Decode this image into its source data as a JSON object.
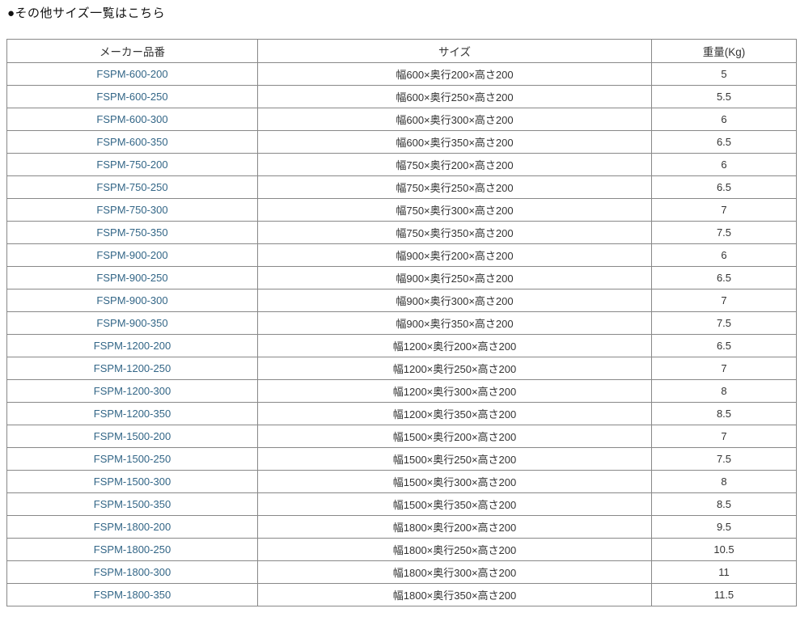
{
  "page": {
    "title": "●その他サイズ一覧はこちら"
  },
  "table": {
    "headers": {
      "part_number": "メーカー品番",
      "size": "サイズ",
      "weight": "重量(Kg)"
    },
    "rows": [
      {
        "part_number": "FSPM-600-200",
        "size": "幅600×奥行200×高さ200",
        "weight": "5"
      },
      {
        "part_number": "FSPM-600-250",
        "size": "幅600×奥行250×高さ200",
        "weight": "5.5"
      },
      {
        "part_number": "FSPM-600-300",
        "size": "幅600×奥行300×高さ200",
        "weight": "6"
      },
      {
        "part_number": "FSPM-600-350",
        "size": "幅600×奥行350×高さ200",
        "weight": "6.5"
      },
      {
        "part_number": "FSPM-750-200",
        "size": "幅750×奥行200×高さ200",
        "weight": "6"
      },
      {
        "part_number": "FSPM-750-250",
        "size": "幅750×奥行250×高さ200",
        "weight": "6.5"
      },
      {
        "part_number": "FSPM-750-300",
        "size": "幅750×奥行300×高さ200",
        "weight": "7"
      },
      {
        "part_number": "FSPM-750-350",
        "size": "幅750×奥行350×高さ200",
        "weight": "7.5"
      },
      {
        "part_number": "FSPM-900-200",
        "size": "幅900×奥行200×高さ200",
        "weight": "6"
      },
      {
        "part_number": "FSPM-900-250",
        "size": "幅900×奥行250×高さ200",
        "weight": "6.5"
      },
      {
        "part_number": "FSPM-900-300",
        "size": "幅900×奥行300×高さ200",
        "weight": "7"
      },
      {
        "part_number": "FSPM-900-350",
        "size": "幅900×奥行350×高さ200",
        "weight": "7.5"
      },
      {
        "part_number": "FSPM-1200-200",
        "size": "幅1200×奥行200×高さ200",
        "weight": "6.5"
      },
      {
        "part_number": "FSPM-1200-250",
        "size": "幅1200×奥行250×高さ200",
        "weight": "7"
      },
      {
        "part_number": "FSPM-1200-300",
        "size": "幅1200×奥行300×高さ200",
        "weight": "8"
      },
      {
        "part_number": "FSPM-1200-350",
        "size": "幅1200×奥行350×高さ200",
        "weight": "8.5"
      },
      {
        "part_number": "FSPM-1500-200",
        "size": "幅1500×奥行200×高さ200",
        "weight": "7"
      },
      {
        "part_number": "FSPM-1500-250",
        "size": "幅1500×奥行250×高さ200",
        "weight": "7.5"
      },
      {
        "part_number": "FSPM-1500-300",
        "size": "幅1500×奥行300×高さ200",
        "weight": "8"
      },
      {
        "part_number": "FSPM-1500-350",
        "size": "幅1500×奥行350×高さ200",
        "weight": "8.5"
      },
      {
        "part_number": "FSPM-1800-200",
        "size": "幅1800×奥行200×高さ200",
        "weight": "9.5"
      },
      {
        "part_number": "FSPM-1800-250",
        "size": "幅1800×奥行250×高さ200",
        "weight": "10.5"
      },
      {
        "part_number": "FSPM-1800-300",
        "size": "幅1800×奥行300×高さ200",
        "weight": "11"
      },
      {
        "part_number": "FSPM-1800-350",
        "size": "幅1800×奥行350×高さ200",
        "weight": "11.5"
      }
    ]
  },
  "colors": {
    "link_text": "#336687",
    "table_border": "#888888",
    "body_text": "#333333",
    "background": "#ffffff"
  }
}
